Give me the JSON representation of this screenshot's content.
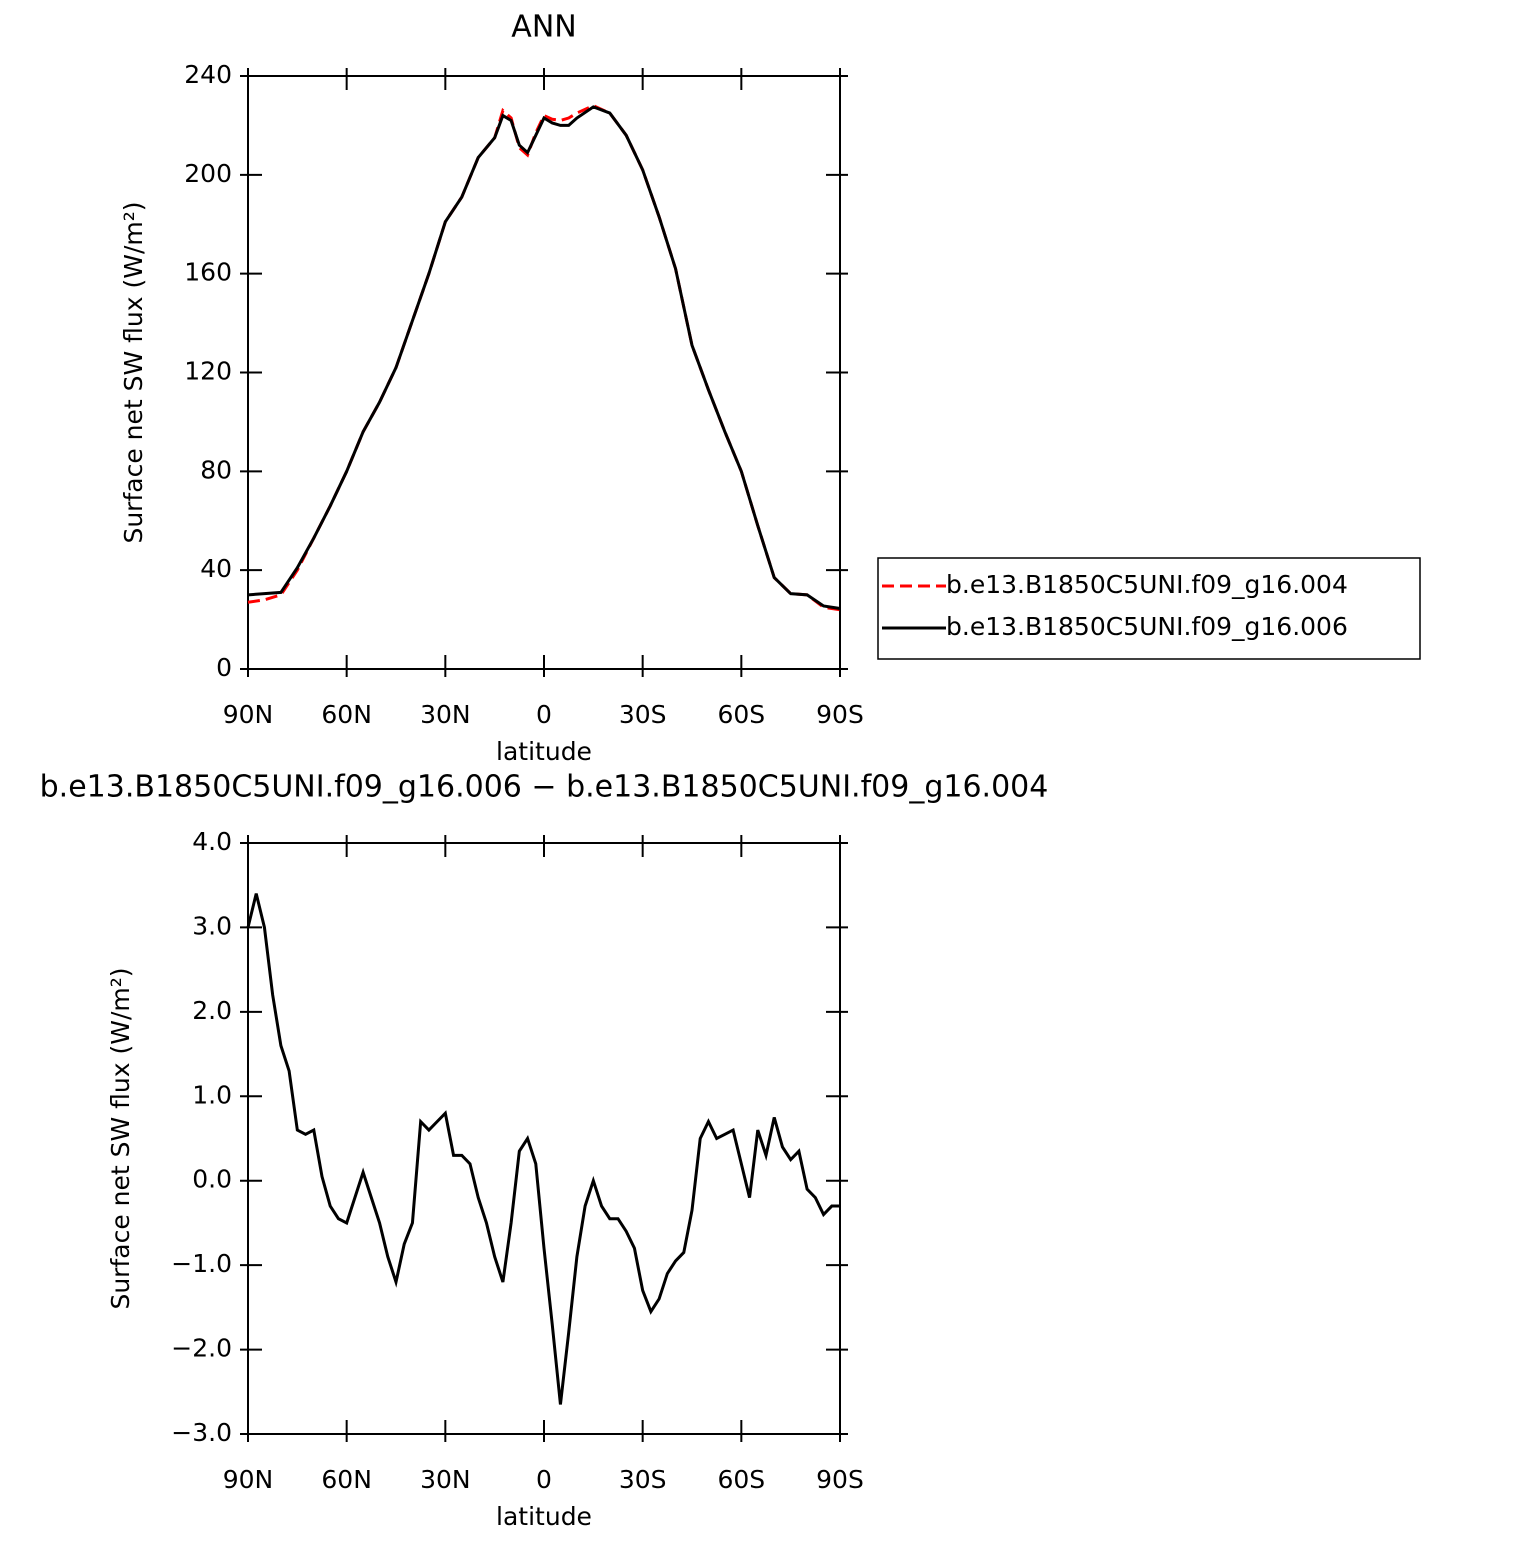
{
  "chart_data": [
    {
      "type": "line",
      "title": "ANN",
      "xlabel": "latitude",
      "ylabel": "Surface net SW flux (W/m²)",
      "x": [
        90,
        85,
        80,
        75,
        70,
        65,
        60,
        55,
        50,
        45,
        40,
        35,
        30,
        25,
        20,
        15,
        12.5,
        10,
        7.5,
        5,
        2.5,
        0,
        -2.5,
        -5,
        -7.5,
        -10,
        -15,
        -20,
        -25,
        -30,
        -35,
        -40,
        -45,
        -50,
        -55,
        -60,
        -65,
        -70,
        -75,
        -80,
        -85,
        -90
      ],
      "series": [
        {
          "name": "b.e13.B1850C5UNI.f09_g16.004",
          "color": "#ff0000",
          "dashed": true,
          "values": [
            27,
            28,
            30,
            40,
            53,
            66,
            80,
            96,
            108,
            122,
            141,
            160,
            181,
            191,
            207,
            215,
            226,
            223,
            211,
            208,
            217,
            224,
            222.5,
            222,
            223,
            225,
            228,
            225,
            216,
            202,
            183,
            162,
            131,
            113,
            96,
            80,
            58,
            37,
            30.5,
            30,
            25,
            24
          ]
        },
        {
          "name": "b.e13.B1850C5UNI.f09_g16.006",
          "color": "#000000",
          "dashed": false,
          "values": [
            30,
            30.5,
            31,
            41,
            53,
            66,
            80,
            96,
            108,
            122,
            141,
            160,
            181,
            191,
            207,
            215,
            224,
            222,
            212,
            209,
            216,
            223,
            221,
            220,
            220,
            223,
            227.5,
            225,
            216,
            202,
            183,
            162,
            131,
            113,
            96,
            80,
            58,
            37,
            30.5,
            30,
            25.5,
            24.5
          ]
        }
      ],
      "xlim": [
        90,
        -90
      ],
      "xticks": [
        {
          "value": 90,
          "label": "90N"
        },
        {
          "value": 60,
          "label": "60N"
        },
        {
          "value": 30,
          "label": "30N"
        },
        0,
        {
          "value": -30,
          "label": "30S"
        },
        {
          "value": -60,
          "label": "60S"
        },
        {
          "value": -90,
          "label": "90S"
        }
      ],
      "ylim": [
        0,
        240
      ],
      "yticks": [
        0,
        40,
        80,
        120,
        160,
        200,
        240
      ],
      "legend": "right"
    },
    {
      "type": "line",
      "title": "b.e13.B1850C5UNI.f09_g16.006 − b.e13.B1850C5UNI.f09_g16.004",
      "xlabel": "latitude",
      "ylabel": "Surface net SW flux (W/m²)",
      "x": [
        90,
        87.5,
        85,
        82.5,
        80,
        77.5,
        75,
        72.5,
        70,
        67.5,
        65,
        62.5,
        60,
        57.5,
        55,
        52.5,
        50,
        47.5,
        45,
        42.5,
        40,
        37.5,
        35,
        32.5,
        30,
        27.5,
        25,
        22.5,
        20,
        17.5,
        15,
        12.5,
        10,
        7.5,
        5,
        2.5,
        0,
        -2.5,
        -5,
        -7.5,
        -10,
        -12.5,
        -15,
        -17.5,
        -20,
        -22.5,
        -25,
        -27.5,
        -30,
        -32.5,
        -35,
        -37.5,
        -40,
        -42.5,
        -45,
        -47.5,
        -50,
        -52.5,
        -55,
        -57.5,
        -60,
        -62.5,
        -65,
        -67.5,
        -70,
        -72.5,
        -75,
        -77.5,
        -80,
        -82.5,
        -85,
        -87.5,
        -90
      ],
      "values": [
        3.0,
        3.4,
        3.0,
        2.2,
        1.6,
        1.3,
        0.6,
        0.55,
        0.6,
        0.05,
        -0.3,
        -0.45,
        -0.5,
        -0.2,
        0.1,
        -0.2,
        -0.5,
        -0.9,
        -1.2,
        -0.75,
        -0.5,
        0.7,
        0.6,
        0.7,
        0.8,
        0.3,
        0.3,
        0.2,
        -0.2,
        -0.5,
        -0.9,
        -1.2,
        -0.5,
        0.35,
        0.5,
        0.2,
        -0.8,
        -1.7,
        -2.65,
        -1.8,
        -0.9,
        -0.3,
        0.0,
        -0.3,
        -0.45,
        -0.45,
        -0.6,
        -0.8,
        -1.3,
        -1.55,
        -1.4,
        -1.1,
        -0.95,
        -0.85,
        -0.35,
        0.5,
        0.7,
        0.5,
        0.55,
        0.6,
        0.2,
        -0.2,
        0.6,
        0.3,
        0.75,
        0.4,
        0.25,
        0.35,
        -0.1,
        -0.2,
        -0.4,
        -0.3,
        -0.3
      ],
      "color": "#000000",
      "xlim": [
        90,
        -90
      ],
      "xticks": [
        {
          "value": 90,
          "label": "90N"
        },
        {
          "value": 60,
          "label": "60N"
        },
        {
          "value": 30,
          "label": "30N"
        },
        0,
        {
          "value": -30,
          "label": "30S"
        },
        {
          "value": -60,
          "label": "60S"
        },
        {
          "value": -90,
          "label": "90S"
        }
      ],
      "ylim": [
        -3,
        4
      ],
      "yticks": [
        {
          "value": -3,
          "label": "−3.0"
        },
        {
          "value": -2,
          "label": "−2.0"
        },
        {
          "value": -1,
          "label": "−1.0"
        },
        {
          "value": 0,
          "label": "0.0"
        },
        {
          "value": 1,
          "label": "1.0"
        },
        {
          "value": 2,
          "label": "2.0"
        },
        {
          "value": 3,
          "label": "3.0"
        },
        {
          "value": 4,
          "label": "4.0"
        }
      ]
    }
  ]
}
